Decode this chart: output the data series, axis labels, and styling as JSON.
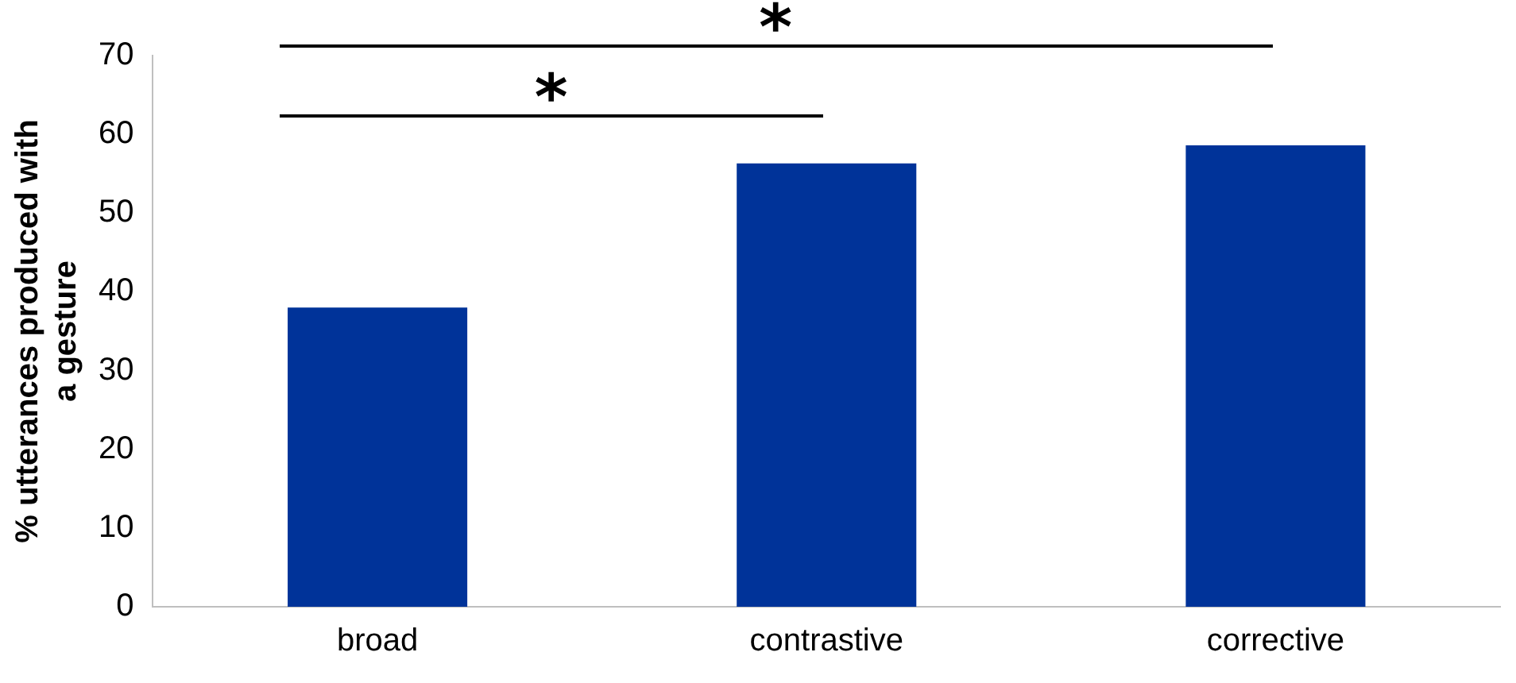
{
  "chart_data": {
    "type": "bar",
    "ylabel": "% utterances produced with a gesture",
    "categories": [
      "broad",
      "contrastive",
      "corrective"
    ],
    "values": [
      38,
      56.3,
      58.6
    ],
    "color": "#003399",
    "ylim": [
      0,
      70
    ],
    "yticks": [
      0,
      10,
      20,
      30,
      40,
      50,
      60,
      70
    ],
    "grid": false,
    "legend": false,
    "annotations": [
      "*",
      "*"
    ]
  }
}
